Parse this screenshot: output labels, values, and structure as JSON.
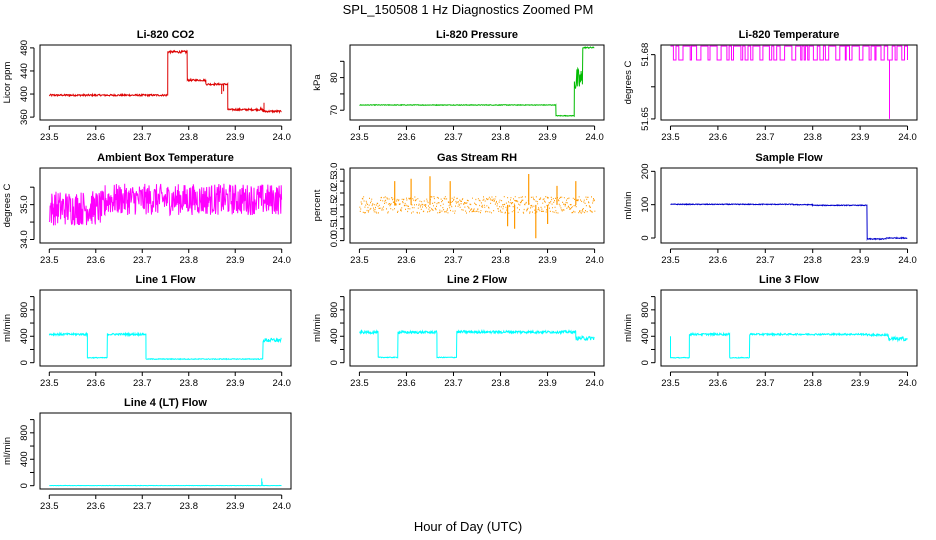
{
  "title": "SPL_150508  1 Hz Diagnostics Zoomed PM",
  "xlabel": "Hour of Day (UTC)",
  "chart_data": [
    {
      "type": "line",
      "title": "Li-820 CO2",
      "ylabel": "Licor ppm",
      "color": "#dd0000",
      "xlim": [
        23.48,
        24.02
      ],
      "ylim": [
        355,
        485
      ],
      "xticks": [
        23.5,
        23.6,
        23.7,
        23.8,
        23.9,
        24.0
      ],
      "xtick_labels": [
        "23.5",
        "23.6",
        "23.7",
        "23.8",
        "23.9",
        "24.0"
      ],
      "yticks": [
        360,
        400,
        440,
        480
      ],
      "ytick_labels": [
        "360",
        "400",
        "440",
        "480"
      ],
      "style": "noise",
      "segments": [
        [
          23.5,
          23.755,
          398,
          1.5
        ],
        [
          23.755,
          23.797,
          473,
          2
        ],
        [
          23.797,
          23.837,
          424,
          1.5
        ],
        [
          23.837,
          23.884,
          417,
          1.5
        ],
        [
          23.884,
          23.96,
          373,
          1.5
        ],
        [
          23.96,
          24.0,
          370,
          1.5
        ]
      ],
      "spikes": [
        [
          23.871,
          400
        ],
        [
          23.875,
          405
        ],
        [
          23.962,
          385
        ],
        [
          23.955,
          378
        ]
      ]
    },
    {
      "type": "line",
      "title": "Li-820 Pressure",
      "ylabel": "kPa",
      "color": "#00bb00",
      "xlim": [
        23.48,
        24.02
      ],
      "ylim": [
        67,
        90
      ],
      "xticks": [
        23.5,
        23.6,
        23.7,
        23.8,
        23.9,
        24.0
      ],
      "xtick_labels": [
        "23.5",
        "23.6",
        "23.7",
        "23.8",
        "23.9",
        "24.0"
      ],
      "yticks": [
        70,
        75,
        80,
        85
      ],
      "ytick_labels": [
        "70",
        "",
        "80",
        ""
      ],
      "style": "noise",
      "segments": [
        [
          23.5,
          23.918,
          71.6,
          0.1
        ],
        [
          23.918,
          23.957,
          68.3,
          0.1
        ],
        [
          23.957,
          23.975,
          79,
          4
        ],
        [
          23.975,
          24.0,
          89.2,
          0.2
        ]
      ],
      "spikes": []
    },
    {
      "type": "line",
      "title": "Li-820 Temperature",
      "ylabel": "degrees C",
      "color": "#ff00ff",
      "xlim": [
        23.48,
        24.02
      ],
      "ylim": [
        51.6495,
        51.6845
      ],
      "xticks": [
        23.5,
        23.6,
        23.7,
        23.8,
        23.9,
        24.0
      ],
      "xtick_labels": [
        "23.5",
        "23.6",
        "23.7",
        "23.8",
        "23.9",
        "24.0"
      ],
      "yticks": [
        51.65,
        51.665,
        51.68
      ],
      "ytick_labels": [
        "51.65",
        "",
        "51.68"
      ],
      "style": "square",
      "levels": [
        51.6775,
        51.684
      ],
      "dips": [
        [
          23.962,
          51.65
        ]
      ],
      "x_range": [
        23.5,
        24.0
      ]
    },
    {
      "type": "line",
      "title": "Ambient Box Temperature",
      "ylabel": "degrees C",
      "color": "#ff00ff",
      "xlim": [
        23.48,
        24.02
      ],
      "ylim": [
        33.9,
        36.05
      ],
      "xticks": [
        23.5,
        23.6,
        23.7,
        23.8,
        23.9,
        24.0
      ],
      "xtick_labels": [
        "23.5",
        "23.6",
        "23.7",
        "23.8",
        "23.9",
        "24.0"
      ],
      "yticks": [
        34,
        34.5,
        35,
        35.5
      ],
      "ytick_labels": [
        "34.0",
        "",
        "35.0",
        ""
      ],
      "style": "noise",
      "segments": [
        [
          23.5,
          23.62,
          34.9,
          0.5
        ],
        [
          23.62,
          24.0,
          35.15,
          0.45
        ]
      ],
      "spikes": []
    },
    {
      "type": "line",
      "title": "Gas Stream RH",
      "ylabel": "percent",
      "color": "#ff9900",
      "xlim": [
        23.48,
        24.02
      ],
      "ylim": [
        -0.1,
        3.05
      ],
      "xticks": [
        23.5,
        23.6,
        23.7,
        23.8,
        23.9,
        24.0
      ],
      "xtick_labels": [
        "23.5",
        "23.6",
        "23.7",
        "23.8",
        "23.9",
        "24.0"
      ],
      "yticks": [
        0,
        0.5,
        1,
        1.5,
        2,
        2.5,
        3
      ],
      "ytick_labels": [
        "0.0",
        "0.5",
        "1.0",
        "1.5",
        "2.0",
        "2.5",
        "3.0"
      ],
      "style": "dots",
      "segments": [
        [
          23.5,
          24.0,
          1.5,
          0.35
        ]
      ],
      "spikes": [
        [
          23.575,
          2.5
        ],
        [
          23.61,
          2.6
        ],
        [
          23.65,
          2.7
        ],
        [
          23.693,
          2.5
        ],
        [
          23.86,
          2.8
        ],
        [
          23.875,
          0.1
        ],
        [
          23.83,
          0.5
        ],
        [
          23.92,
          2.3
        ],
        [
          23.9,
          0.7
        ],
        [
          23.96,
          2.5
        ],
        [
          23.815,
          0.6
        ]
      ]
    },
    {
      "type": "line",
      "title": "Sample Flow",
      "ylabel": "ml/min",
      "color": "#0000cc",
      "xlim": [
        23.48,
        24.02
      ],
      "ylim": [
        -15,
        210
      ],
      "xticks": [
        23.5,
        23.6,
        23.7,
        23.8,
        23.9,
        24.0
      ],
      "xtick_labels": [
        "23.5",
        "23.6",
        "23.7",
        "23.8",
        "23.9",
        "24.0"
      ],
      "yticks": [
        0,
        100,
        200
      ],
      "ytick_labels": [
        "0",
        "100",
        "200"
      ],
      "style": "noise",
      "segments": [
        [
          23.5,
          23.76,
          101,
          1.2
        ],
        [
          23.76,
          23.8,
          100,
          1.2
        ],
        [
          23.8,
          23.915,
          98,
          1.2
        ],
        [
          23.915,
          23.955,
          -3,
          1.5
        ],
        [
          23.955,
          24.0,
          0,
          1.5
        ]
      ],
      "spikes": []
    },
    {
      "type": "line",
      "title": "Line 1 Flow",
      "ylabel": "ml/min",
      "color": "#00ffff",
      "xlim": [
        23.48,
        24.02
      ],
      "ylim": [
        -50,
        1100
      ],
      "xticks": [
        23.5,
        23.6,
        23.7,
        23.8,
        23.9,
        24.0
      ],
      "xtick_labels": [
        "23.5",
        "23.6",
        "23.7",
        "23.8",
        "23.9",
        "24.0"
      ],
      "yticks": [
        0,
        200,
        400,
        600,
        800,
        1000
      ],
      "ytick_labels": [
        "0",
        "",
        "400",
        "",
        "800",
        ""
      ],
      "style": "noise",
      "segments": [
        [
          23.5,
          23.582,
          430,
          15
        ],
        [
          23.582,
          23.625,
          75,
          6
        ],
        [
          23.625,
          23.708,
          430,
          15
        ],
        [
          23.708,
          23.96,
          55,
          6
        ],
        [
          23.96,
          24.0,
          340,
          30
        ]
      ],
      "spikes": []
    },
    {
      "type": "line",
      "title": "Line 2 Flow",
      "ylabel": "ml/min",
      "color": "#00ffff",
      "xlim": [
        23.48,
        24.02
      ],
      "ylim": [
        -50,
        1100
      ],
      "xticks": [
        23.5,
        23.6,
        23.7,
        23.8,
        23.9,
        24.0
      ],
      "xtick_labels": [
        "23.5",
        "23.6",
        "23.7",
        "23.8",
        "23.9",
        "24.0"
      ],
      "yticks": [
        0,
        200,
        400,
        600,
        800,
        1000
      ],
      "ytick_labels": [
        "0",
        "",
        "400",
        "",
        "800",
        ""
      ],
      "style": "noise",
      "segments": [
        [
          23.5,
          23.54,
          460,
          20
        ],
        [
          23.54,
          23.582,
          80,
          6
        ],
        [
          23.582,
          23.665,
          460,
          20
        ],
        [
          23.665,
          23.707,
          80,
          6
        ],
        [
          23.707,
          23.96,
          465,
          20
        ],
        [
          23.96,
          24.0,
          370,
          30
        ]
      ],
      "spikes": []
    },
    {
      "type": "line",
      "title": "Line 3 Flow",
      "ylabel": "ml/min",
      "color": "#00ffff",
      "xlim": [
        23.48,
        24.02
      ],
      "ylim": [
        -50,
        1100
      ],
      "xticks": [
        23.5,
        23.6,
        23.7,
        23.8,
        23.9,
        24.0
      ],
      "xtick_labels": [
        "23.5",
        "23.6",
        "23.7",
        "23.8",
        "23.9",
        "24.0"
      ],
      "yticks": [
        0,
        200,
        400,
        600,
        800,
        1000
      ],
      "ytick_labels": [
        "0",
        "",
        "400",
        "",
        "800",
        ""
      ],
      "style": "noise",
      "segments": [
        [
          23.5,
          23.5,
          400,
          5
        ],
        [
          23.5,
          23.54,
          75,
          6
        ],
        [
          23.54,
          23.625,
          430,
          15
        ],
        [
          23.625,
          23.667,
          75,
          6
        ],
        [
          23.667,
          23.915,
          430,
          12
        ],
        [
          23.915,
          23.96,
          420,
          15
        ],
        [
          23.96,
          24.0,
          360,
          30
        ]
      ],
      "spikes": []
    },
    {
      "type": "line",
      "title": "Line 4 (LT) Flow",
      "ylabel": "ml/min",
      "color": "#00ffff",
      "xlim": [
        23.48,
        24.02
      ],
      "ylim": [
        -50,
        1100
      ],
      "xticks": [
        23.5,
        23.6,
        23.7,
        23.8,
        23.9,
        24.0
      ],
      "xtick_labels": [
        "23.5",
        "23.6",
        "23.7",
        "23.8",
        "23.9",
        "24.0"
      ],
      "yticks": [
        0,
        200,
        400,
        600,
        800,
        1000
      ],
      "ytick_labels": [
        "0",
        "",
        "400",
        "",
        "800",
        ""
      ],
      "style": "noise",
      "segments": [
        [
          23.5,
          24.0,
          2,
          2
        ]
      ],
      "spikes": [
        [
          23.957,
          110
        ],
        [
          23.958,
          60
        ]
      ]
    }
  ]
}
